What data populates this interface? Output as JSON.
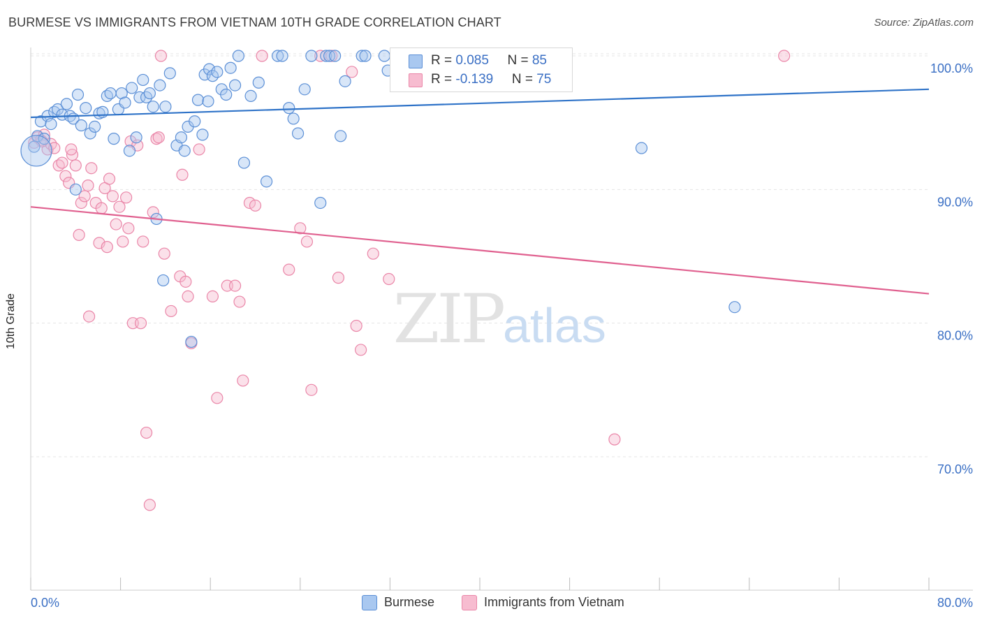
{
  "title": "BURMESE VS IMMIGRANTS FROM VIETNAM 10TH GRADE CORRELATION CHART",
  "source": "Source: ZipAtlas.com",
  "watermark": {
    "zip": "ZIP",
    "atlas": "atlas"
  },
  "colors": {
    "blue_fill": "#a9c8f0",
    "blue_stroke": "#5b8fd6",
    "blue_line": "#2f73c8",
    "pink_fill": "#f7bcd0",
    "pink_stroke": "#ea86a8",
    "pink_line": "#e0608f",
    "grid": "#e4e4e4",
    "axis_text": "#3a6fc4"
  },
  "legend": {
    "rows": [
      {
        "r_label": "R = ",
        "r_value": "0.085",
        "n_label": "N = ",
        "n_value": "85"
      },
      {
        "r_label": "R = ",
        "r_value": "-0.139",
        "n_label": "N = ",
        "n_value": "75"
      }
    ]
  },
  "chart_data": {
    "type": "scatter",
    "title": "BURMESE VS IMMIGRANTS FROM VIETNAM 10TH GRADE CORRELATION CHART",
    "xlabel": "",
    "ylabel": "10th Grade",
    "xlim": [
      0,
      80
    ],
    "ylim": [
      60,
      102
    ],
    "x_tick_labels": [
      "0.0%",
      "80.0%"
    ],
    "y_ticks": [
      70,
      80,
      90,
      100
    ],
    "y_tick_labels": [
      "70.0%",
      "80.0%",
      "90.0%",
      "100.0%"
    ],
    "grid": true,
    "legend_placement": "top-center",
    "series": [
      {
        "name": "Burmese",
        "color": "#5b8fd6",
        "r": 0.085,
        "n": 85,
        "trend": {
          "x": [
            0,
            80
          ],
          "y": [
            95.4,
            97.5
          ]
        },
        "points": [
          [
            0.3,
            93.2
          ],
          [
            0.6,
            94.0
          ],
          [
            0.9,
            95.1
          ],
          [
            1.2,
            93.8
          ],
          [
            1.5,
            95.5
          ],
          [
            1.8,
            94.9
          ],
          [
            2.1,
            95.8
          ],
          [
            2.4,
            96.0
          ],
          [
            2.8,
            95.6
          ],
          [
            3.2,
            96.4
          ],
          [
            3.5,
            95.5
          ],
          [
            3.8,
            95.3
          ],
          [
            4.2,
            97.1
          ],
          [
            4.5,
            94.8
          ],
          [
            4.9,
            96.1
          ],
          [
            5.3,
            94.2
          ],
          [
            5.7,
            94.7
          ],
          [
            6.1,
            95.7
          ],
          [
            6.4,
            95.8
          ],
          [
            6.8,
            97.0
          ],
          [
            7.1,
            97.2
          ],
          [
            7.4,
            93.8
          ],
          [
            7.8,
            96.0
          ],
          [
            8.1,
            97.2
          ],
          [
            8.4,
            96.5
          ],
          [
            8.8,
            92.9
          ],
          [
            9.0,
            97.6
          ],
          [
            9.4,
            93.9
          ],
          [
            9.7,
            96.9
          ],
          [
            10.0,
            98.2
          ],
          [
            10.3,
            96.9
          ],
          [
            10.6,
            97.2
          ],
          [
            10.9,
            96.2
          ],
          [
            11.2,
            87.8
          ],
          [
            11.5,
            97.8
          ],
          [
            11.8,
            83.2
          ],
          [
            12.0,
            96.2
          ],
          [
            12.4,
            98.7
          ],
          [
            13.0,
            93.3
          ],
          [
            13.4,
            93.9
          ],
          [
            13.7,
            92.9
          ],
          [
            14.0,
            94.7
          ],
          [
            14.3,
            78.6
          ],
          [
            14.6,
            95.1
          ],
          [
            14.9,
            96.7
          ],
          [
            15.3,
            94.1
          ],
          [
            15.5,
            98.6
          ],
          [
            15.9,
            99.0
          ],
          [
            16.2,
            98.5
          ],
          [
            16.6,
            98.8
          ],
          [
            17.0,
            97.5
          ],
          [
            17.4,
            97.1
          ],
          [
            17.8,
            99.1
          ],
          [
            18.2,
            97.8
          ],
          [
            18.5,
            100.0
          ],
          [
            19.0,
            92.0
          ],
          [
            19.6,
            97.0
          ],
          [
            20.3,
            98.0
          ],
          [
            21.0,
            90.6
          ],
          [
            22.0,
            100.0
          ],
          [
            22.4,
            100.0
          ],
          [
            23.0,
            96.1
          ],
          [
            23.4,
            95.3
          ],
          [
            23.8,
            94.2
          ],
          [
            24.4,
            97.5
          ],
          [
            25.0,
            100.0
          ],
          [
            25.8,
            89.0
          ],
          [
            26.3,
            100.0
          ],
          [
            26.6,
            100.0
          ],
          [
            27.1,
            100.0
          ],
          [
            27.6,
            94.0
          ],
          [
            28.0,
            98.1
          ],
          [
            29.5,
            100.0
          ],
          [
            29.8,
            100.0
          ],
          [
            31.5,
            100.0
          ],
          [
            31.8,
            98.9
          ],
          [
            32.6,
            100.0
          ],
          [
            35.3,
            100.0
          ],
          [
            37.2,
            100.0
          ],
          [
            42.1,
            99.2
          ],
          [
            44.5,
            98.7
          ],
          [
            54.4,
            93.1
          ],
          [
            62.7,
            81.2
          ],
          [
            4.0,
            90.0
          ],
          [
            15.8,
            96.6
          ]
        ]
      },
      {
        "name": "Immigrants from Vietnam",
        "color": "#ea86a8",
        "r": -0.139,
        "n": 75,
        "trend": {
          "x": [
            0,
            80
          ],
          "y": [
            88.7,
            82.2
          ]
        },
        "points": [
          [
            0.3,
            93.5
          ],
          [
            0.6,
            93.9
          ],
          [
            0.9,
            93.7
          ],
          [
            1.2,
            94.1
          ],
          [
            1.5,
            93.0
          ],
          [
            1.8,
            93.4
          ],
          [
            2.1,
            93.1
          ],
          [
            2.5,
            91.8
          ],
          [
            2.8,
            92.0
          ],
          [
            3.1,
            91.0
          ],
          [
            3.4,
            90.5
          ],
          [
            3.7,
            92.6
          ],
          [
            4.0,
            91.8
          ],
          [
            4.3,
            86.6
          ],
          [
            4.5,
            89.0
          ],
          [
            4.8,
            89.5
          ],
          [
            5.1,
            90.3
          ],
          [
            5.4,
            91.6
          ],
          [
            5.2,
            80.5
          ],
          [
            5.8,
            89.0
          ],
          [
            6.1,
            86.0
          ],
          [
            6.3,
            88.6
          ],
          [
            6.6,
            90.1
          ],
          [
            6.8,
            85.7
          ],
          [
            7.0,
            90.8
          ],
          [
            7.3,
            89.5
          ],
          [
            7.6,
            87.4
          ],
          [
            7.9,
            88.7
          ],
          [
            8.2,
            86.1
          ],
          [
            8.5,
            89.4
          ],
          [
            8.7,
            87.1
          ],
          [
            8.9,
            93.6
          ],
          [
            9.1,
            80.0
          ],
          [
            9.5,
            93.3
          ],
          [
            9.8,
            80.0
          ],
          [
            10.0,
            86.1
          ],
          [
            10.3,
            71.8
          ],
          [
            10.6,
            66.4
          ],
          [
            10.9,
            88.3
          ],
          [
            11.2,
            93.8
          ],
          [
            11.4,
            93.9
          ],
          [
            11.6,
            100.0
          ],
          [
            11.9,
            85.2
          ],
          [
            12.5,
            80.9
          ],
          [
            13.3,
            83.5
          ],
          [
            13.5,
            91.1
          ],
          [
            13.8,
            83.1
          ],
          [
            14.0,
            82.0
          ],
          [
            14.3,
            78.5
          ],
          [
            15.0,
            93.0
          ],
          [
            16.2,
            82.0
          ],
          [
            16.6,
            74.4
          ],
          [
            17.5,
            82.8
          ],
          [
            18.2,
            82.8
          ],
          [
            18.6,
            81.6
          ],
          [
            18.9,
            75.7
          ],
          [
            19.5,
            89.0
          ],
          [
            20.0,
            88.8
          ],
          [
            20.6,
            100.0
          ],
          [
            23.0,
            84.0
          ],
          [
            24.0,
            87.1
          ],
          [
            24.6,
            86.1
          ],
          [
            25.0,
            75.0
          ],
          [
            25.8,
            100.0
          ],
          [
            26.8,
            100.0
          ],
          [
            27.4,
            83.4
          ],
          [
            28.6,
            98.8
          ],
          [
            29.0,
            79.8
          ],
          [
            29.4,
            78.0
          ],
          [
            30.5,
            85.2
          ],
          [
            31.9,
            83.3
          ],
          [
            52.0,
            71.3
          ],
          [
            67.1,
            100.0
          ],
          [
            1.0,
            93.6
          ],
          [
            3.6,
            93.0
          ]
        ]
      }
    ],
    "bubble": {
      "series": 0,
      "x": 0.0,
      "y": 93.0
    }
  },
  "bottom_legend": [
    "Burmese",
    "Immigrants from Vietnam"
  ]
}
